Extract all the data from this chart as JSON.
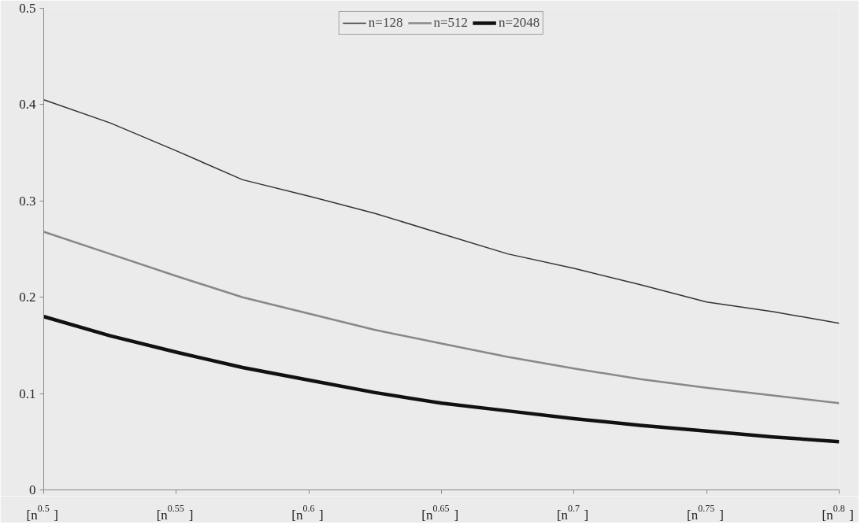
{
  "chart_data": {
    "type": "line",
    "x": [
      0.5,
      0.525,
      0.55,
      0.575,
      0.6,
      0.625,
      0.65,
      0.675,
      0.7,
      0.725,
      0.75,
      0.775,
      0.8
    ],
    "series": [
      {
        "name": "n=128",
        "color": "#333333",
        "values": [
          0.405,
          0.381,
          0.352,
          0.322,
          0.305,
          0.287,
          0.266,
          0.245,
          0.23,
          0.213,
          0.195,
          0.185,
          0.173
        ]
      },
      {
        "name": "n=512",
        "color": "#888888",
        "values": [
          0.268,
          0.245,
          0.222,
          0.2,
          0.183,
          0.166,
          0.152,
          0.138,
          0.126,
          0.115,
          0.106,
          0.098,
          0.09
        ]
      },
      {
        "name": "n=2048",
        "color": "#111111",
        "values": [
          0.18,
          0.16,
          0.143,
          0.127,
          0.114,
          0.101,
          0.09,
          0.082,
          0.074,
          0.067,
          0.061,
          0.055,
          0.05
        ]
      }
    ],
    "xlim": [
      0.5,
      0.8
    ],
    "ylim": [
      0,
      0.5
    ],
    "xticks": [
      {
        "value": 0.5,
        "label": "[n$^{0.5}$]"
      },
      {
        "value": 0.55,
        "label": "[n$^{0.55}$]"
      },
      {
        "value": 0.6,
        "label": "[n$^{0.6}$]"
      },
      {
        "value": 0.65,
        "label": "[n$^{0.65}$]"
      },
      {
        "value": 0.7,
        "label": "[n$^{0.7}$]"
      },
      {
        "value": 0.75,
        "label": "[n$^{0.75}$]"
      },
      {
        "value": 0.8,
        "label": "[n$^{0.8}$]"
      }
    ],
    "yticks": [
      0,
      0.1,
      0.2,
      0.3,
      0.4,
      0.5
    ],
    "grid": false,
    "legend": "top",
    "marker": "none",
    "line_style": "solid"
  }
}
